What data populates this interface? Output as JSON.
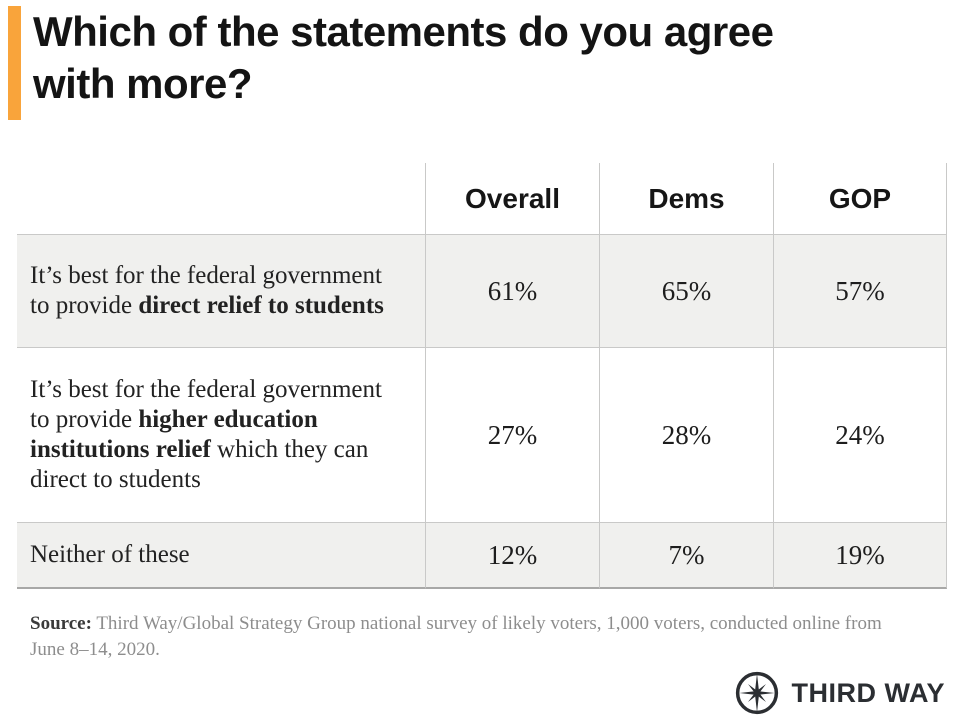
{
  "title": {
    "line1": "Which of the statements do you agree",
    "line2": "with more?"
  },
  "colors": {
    "accent_orange": "#F9A43B",
    "row_shade": "#F0F0EE",
    "border": "#C9C9C8",
    "logo_dark": "#2B2E32"
  },
  "table": {
    "columns": [
      "Overall",
      "Dems",
      "GOP"
    ],
    "rows": [
      {
        "label_parts": [
          {
            "text": "It’s best for the federal government to provide ",
            "bold": false
          },
          {
            "text": "direct relief to students",
            "bold": true
          }
        ],
        "values": [
          "61%",
          "65%",
          "57%"
        ]
      },
      {
        "label_parts": [
          {
            "text": "It’s best for the federal government to provide ",
            "bold": false
          },
          {
            "text": "higher education institutions relief",
            "bold": true
          },
          {
            "text": " which they can direct to students",
            "bold": false
          }
        ],
        "values": [
          "27%",
          "28%",
          "24%"
        ]
      },
      {
        "label_parts": [
          {
            "text": "Neither of these",
            "bold": false
          }
        ],
        "values": [
          "12%",
          "7%",
          "19%"
        ]
      }
    ]
  },
  "source": {
    "label": "Source:",
    "text": " Third Way/Global Strategy Group national survey of likely voters, 1,000 voters, conducted online from June 8–14, 2020."
  },
  "logo": {
    "text": "THIRD WAY"
  },
  "chart_data": {
    "type": "table",
    "title": "Which of the statements do you agree with more?",
    "categories": [
      "Overall",
      "Dems",
      "GOP"
    ],
    "unit": "%",
    "series": [
      {
        "name": "It’s best for the federal government to provide direct relief to students",
        "values": [
          61,
          65,
          57
        ]
      },
      {
        "name": "It’s best for the federal government to provide higher education institutions relief which they can direct to students",
        "values": [
          27,
          28,
          24
        ]
      },
      {
        "name": "Neither of these",
        "values": [
          12,
          7,
          19
        ]
      }
    ]
  }
}
